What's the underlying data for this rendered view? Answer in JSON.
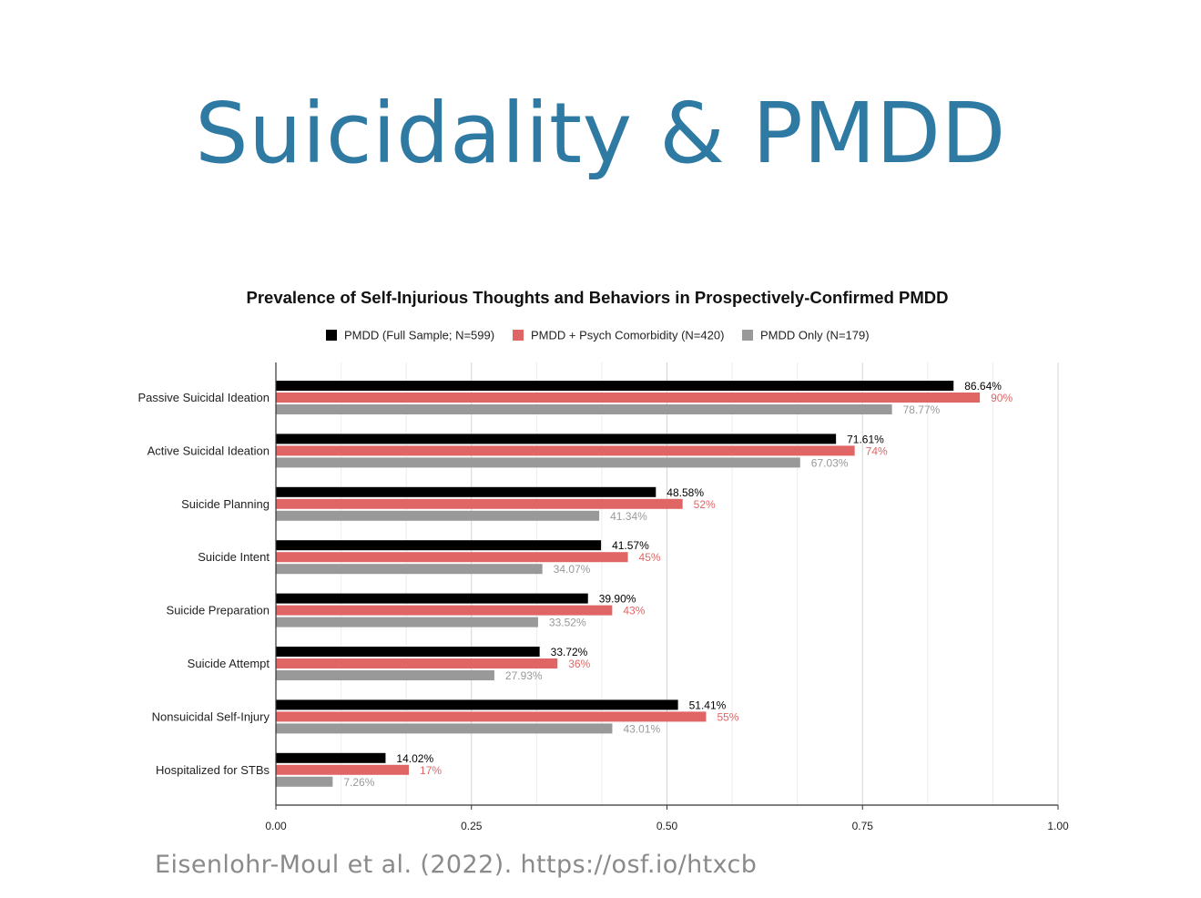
{
  "slide": {
    "title": "Suicidality & PMDD",
    "citation": "Eisenlohr-Moul et al. (2022). https://osf.io/htxcb"
  },
  "chart_data": {
    "type": "bar",
    "orientation": "horizontal",
    "title": "Prevalence of Self-Injurious Thoughts and Behaviors in Prospectively-Confirmed PMDD",
    "xlabel": "",
    "ylabel": "",
    "xlim": [
      0,
      1
    ],
    "x_ticks": [
      "0.00",
      "0.25",
      "0.50",
      "0.75",
      "1.00"
    ],
    "grid": "vertical",
    "legend_position": "top",
    "categories": [
      "Passive Suicidal Ideation",
      "Active Suicidal Ideation",
      "Suicide Planning",
      "Suicide Intent",
      "Suicide Preparation",
      "Suicide Attempt",
      "Nonsuicidal Self-Injury",
      "Hospitalized for STBs"
    ],
    "series": [
      {
        "name": "PMDD (Full Sample; N=599)",
        "color": "#000000",
        "label_color": "#000000",
        "values": [
          0.8664,
          0.7161,
          0.4858,
          0.4157,
          0.399,
          0.3372,
          0.5141,
          0.1402
        ],
        "labels": [
          "86.64%",
          "71.61%",
          "48.58%",
          "41.57%",
          "39.90%",
          "33.72%",
          "51.41%",
          "14.02%"
        ]
      },
      {
        "name": "PMDD + Psych Comorbidity (N=420)",
        "color": "#e06666",
        "label_color": "#e06666",
        "values": [
          0.9,
          0.74,
          0.52,
          0.45,
          0.43,
          0.36,
          0.55,
          0.17
        ],
        "labels": [
          "90%",
          "74%",
          "52%",
          "45%",
          "43%",
          "36%",
          "55%",
          "17%"
        ]
      },
      {
        "name": "PMDD Only (N=179)",
        "color": "#999999",
        "label_color": "#999999",
        "values": [
          0.7877,
          0.6703,
          0.4134,
          0.3407,
          0.3352,
          0.2793,
          0.4301,
          0.0726
        ],
        "labels": [
          "78.77%",
          "67.03%",
          "41.34%",
          "34.07%",
          "33.52%",
          "27.93%",
          "43.01%",
          "7.26%"
        ]
      }
    ]
  }
}
